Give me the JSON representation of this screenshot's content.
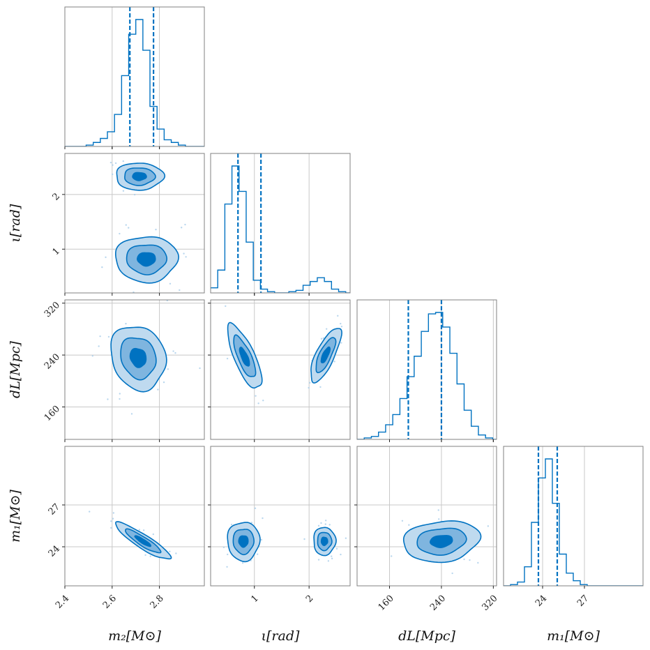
{
  "colors": {
    "line": "#0072C1",
    "fill_outer": "#BFDAEF",
    "fill_mid": "#7FB5DF",
    "fill_inner": "#0072C1",
    "grid": "#c8c8c8",
    "frame": "#808080",
    "points": "#A9CDEA"
  },
  "chart_data": {
    "type": "corner",
    "parameters": [
      {
        "label": "m₂[M⊙]",
        "range": [
          2.4,
          2.99
        ],
        "ticks": [
          2.4,
          2.6,
          2.8
        ],
        "tick_labels": [
          "2.4",
          "2.6",
          "2.8"
        ],
        "quantiles": [
          2.675,
          2.775
        ]
      },
      {
        "label": "ι[rad]",
        "range": [
          0.2,
          2.75
        ],
        "ticks": [
          1,
          2
        ],
        "tick_labels": [
          "1",
          "2"
        ],
        "quantiles": [
          0.7,
          1.12
        ]
      },
      {
        "label": "dL[Mpc]",
        "range": [
          110,
          325
        ],
        "ticks": [
          160,
          240,
          320
        ],
        "tick_labels": [
          "160",
          "240",
          "320"
        ],
        "quantiles": [
          189,
          240
        ]
      },
      {
        "label": "m₁[M⊙]",
        "range": [
          21.2,
          31.2
        ],
        "ticks": [
          24,
          27
        ],
        "tick_labels": [
          "24",
          "27"
        ],
        "quantiles": [
          23.7,
          25.05
        ]
      }
    ],
    "histograms": [
      {
        "param": 0,
        "edges": [
          2.4,
          2.43,
          2.46,
          2.49,
          2.52,
          2.55,
          2.58,
          2.61,
          2.64,
          2.67,
          2.7,
          2.73,
          2.76,
          2.79,
          2.82,
          2.85,
          2.88,
          2.91,
          2.94,
          2.97,
          2.99
        ],
        "counts": [
          0,
          0,
          0,
          1,
          3,
          6,
          11,
          24,
          53,
          84,
          95,
          72,
          30,
          13,
          5,
          3,
          1,
          0,
          0,
          0
        ]
      },
      {
        "param": 1,
        "edges": [
          0.2,
          0.33,
          0.46,
          0.59,
          0.72,
          0.85,
          0.98,
          1.11,
          1.24,
          1.37,
          1.5,
          1.63,
          1.76,
          1.89,
          2.02,
          2.15,
          2.28,
          2.41,
          2.54,
          2.67,
          2.75
        ],
        "counts": [
          4,
          18,
          70,
          100,
          80,
          40,
          10,
          3,
          1,
          0,
          0,
          1,
          2,
          6,
          9,
          12,
          9,
          3,
          1,
          0
        ]
      },
      {
        "param": 2,
        "edges": [
          110,
          121,
          132,
          143,
          154,
          165,
          176,
          187,
          198,
          209,
          220,
          231,
          242,
          253,
          264,
          275,
          286,
          297,
          308,
          319,
          325
        ],
        "counts": [
          0,
          1,
          2,
          5,
          10,
          17,
          28,
          43,
          57,
          74,
          86,
          87,
          77,
          59,
          38,
          20,
          9,
          3,
          1,
          0
        ]
      },
      {
        "param": 3,
        "edges": [
          21.2,
          21.7,
          22.2,
          22.7,
          23.2,
          23.7,
          24.2,
          24.7,
          25.2,
          25.7,
          26.2,
          26.7,
          27.2,
          27.7,
          28.2,
          28.7,
          29.2,
          29.7,
          30.2,
          30.7,
          31.2
        ],
        "counts": [
          0,
          1,
          3,
          15,
          50,
          85,
          100,
          65,
          25,
          10,
          4,
          1,
          0,
          0,
          0,
          0,
          0,
          0,
          0,
          0
        ]
      }
    ],
    "contour_levels": [
      "outer",
      "mid",
      "inner"
    ],
    "pairs": [
      {
        "x": 0,
        "y": 1,
        "modes": [
          {
            "cx": 2.745,
            "cy": 0.82,
            "sx": 0.085,
            "sy": 0.27,
            "rho": 0.0
          },
          {
            "cx": 2.715,
            "cy": 2.33,
            "sx": 0.065,
            "sy": 0.16,
            "rho": 0.0
          }
        ]
      },
      {
        "x": 0,
        "y": 2,
        "modes": [
          {
            "cx": 2.71,
            "cy": 236,
            "sx": 0.075,
            "sy": 32,
            "rho": -0.15
          }
        ]
      },
      {
        "x": 1,
        "y": 2,
        "modes": [
          {
            "cx": 0.82,
            "cy": 237,
            "sx": 0.2,
            "sy": 32,
            "rho": -0.75
          },
          {
            "cx": 2.3,
            "cy": 240,
            "sx": 0.18,
            "sy": 27,
            "rho": 0.75
          }
        ]
      },
      {
        "x": 0,
        "y": 3,
        "modes": [
          {
            "cx": 2.73,
            "cy": 24.4,
            "sx": 0.075,
            "sy": 0.85,
            "rho": -0.9
          }
        ]
      },
      {
        "x": 1,
        "y": 3,
        "modes": [
          {
            "cx": 0.8,
            "cy": 24.4,
            "sx": 0.19,
            "sy": 0.9,
            "rho": 0.0
          },
          {
            "cx": 2.28,
            "cy": 24.4,
            "sx": 0.13,
            "sy": 0.65,
            "rho": 0.0
          }
        ]
      },
      {
        "x": 2,
        "y": 3,
        "modes": [
          {
            "cx": 240,
            "cy": 24.4,
            "sx": 38,
            "sy": 0.95,
            "rho": 0.15
          }
        ]
      }
    ],
    "grid": true
  }
}
